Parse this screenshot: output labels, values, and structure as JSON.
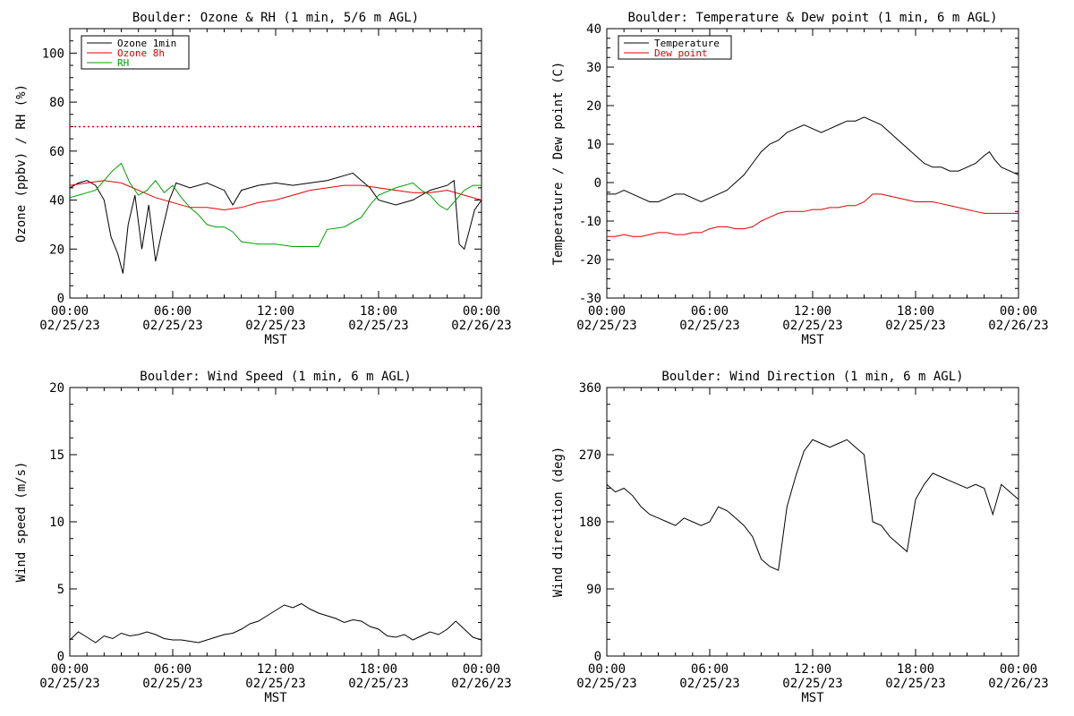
{
  "x_axis": {
    "ticks": [
      {
        "hour": 0,
        "time": "00:00",
        "date": "02/25/23"
      },
      {
        "hour": 6,
        "time": "06:00",
        "date": "02/25/23"
      },
      {
        "hour": 12,
        "time": "12:00",
        "date": "02/25/23"
      },
      {
        "hour": 18,
        "time": "18:00",
        "date": "02/25/23"
      },
      {
        "hour": 24,
        "time": "00:00",
        "date": "02/26/23"
      }
    ],
    "label": "MST"
  },
  "chart_data": [
    {
      "type": "line",
      "title": "Boulder: Ozone & RH (1 min, 5/6 m AGL)",
      "xlabel": "MST",
      "ylabel": "Ozone (ppbv) / RH (%)",
      "xlim": [
        0,
        24
      ],
      "ylim": [
        0,
        110
      ],
      "yticks": [
        0,
        20,
        40,
        60,
        80,
        100
      ],
      "legend": "top-left",
      "grid": false,
      "reference_line": {
        "y": 70,
        "style": "dotted",
        "color": "#e00000"
      },
      "series": [
        {
          "name": "Ozone 1min",
          "color": "#000000",
          "x": [
            0,
            0.5,
            1,
            1.5,
            2,
            2.4,
            2.8,
            3.1,
            3.4,
            3.8,
            4.2,
            4.6,
            5.0,
            5.4,
            5.8,
            6.2,
            7,
            8,
            9,
            9.5,
            10,
            11,
            12,
            13,
            14,
            15,
            16,
            16.5,
            17,
            17.5,
            18,
            19,
            20,
            21,
            22,
            22.4,
            22.7,
            23,
            23.3,
            23.6,
            24
          ],
          "y": [
            45,
            47,
            48,
            46,
            40,
            25,
            18,
            10,
            30,
            42,
            20,
            38,
            15,
            28,
            40,
            47,
            45,
            47,
            44,
            38,
            44,
            46,
            47,
            46,
            47,
            48,
            50,
            51,
            48,
            45,
            40,
            38,
            40,
            44,
            46,
            48,
            22,
            20,
            28,
            36,
            40
          ]
        },
        {
          "name": "Ozone 8h",
          "color": "#e00000",
          "x": [
            0,
            1,
            2,
            3,
            4,
            5,
            6,
            7,
            8,
            9,
            10,
            11,
            12,
            13,
            14,
            15,
            16,
            17,
            18,
            19,
            20,
            21,
            22,
            23,
            24
          ],
          "y": [
            46,
            47,
            48,
            47,
            44,
            41,
            39,
            37,
            37,
            36,
            37,
            39,
            40,
            42,
            44,
            45,
            46,
            46,
            45,
            44,
            43,
            43,
            44,
            42,
            40
          ]
        },
        {
          "name": "RH",
          "color": "#00a000",
          "x": [
            0,
            0.5,
            1,
            1.5,
            2,
            2.5,
            3,
            3.5,
            4,
            4.5,
            5,
            5.5,
            6,
            6.5,
            7,
            7.5,
            8,
            8.5,
            9,
            9.5,
            10,
            11,
            12,
            13,
            14,
            14.5,
            15,
            16,
            17,
            17.5,
            18,
            19,
            20,
            20.5,
            21,
            21.5,
            22,
            22.5,
            23,
            23.5,
            24
          ],
          "y": [
            41,
            42,
            43,
            44,
            48,
            52,
            55,
            47,
            42,
            44,
            48,
            43,
            46,
            41,
            37,
            34,
            30,
            29,
            29,
            27,
            23,
            22,
            22,
            21,
            21,
            21,
            28,
            29,
            33,
            38,
            42,
            45,
            47,
            44,
            42,
            38,
            36,
            40,
            44,
            46,
            46
          ]
        }
      ]
    },
    {
      "type": "line",
      "title": "Boulder: Temperature & Dew point (1 min, 6 m AGL)",
      "xlabel": "MST",
      "ylabel": "Temperature / Dew point (C)",
      "xlim": [
        0,
        24
      ],
      "ylim": [
        -30,
        40
      ],
      "yticks": [
        -30,
        -20,
        -10,
        0,
        10,
        20,
        30,
        40
      ],
      "legend": "top-left",
      "grid": false,
      "series": [
        {
          "name": "Temperature",
          "color": "#000000",
          "x": [
            0,
            0.5,
            1,
            1.5,
            2,
            2.5,
            3,
            3.5,
            4,
            4.5,
            5,
            5.5,
            6,
            6.5,
            7,
            7.5,
            8,
            8.5,
            9,
            9.5,
            10,
            10.5,
            11,
            11.5,
            12,
            12.5,
            13,
            13.5,
            14,
            14.5,
            15,
            15.5,
            16,
            16.5,
            17,
            17.5,
            18,
            18.5,
            19,
            19.5,
            20,
            20.5,
            21,
            21.5,
            22,
            22.3,
            22.6,
            23,
            23.5,
            24
          ],
          "y": [
            -3,
            -3,
            -2,
            -3,
            -4,
            -5,
            -5,
            -4,
            -3,
            -3,
            -4,
            -5,
            -4,
            -3,
            -2,
            0,
            2,
            5,
            8,
            10,
            11,
            13,
            14,
            15,
            14,
            13,
            14,
            15,
            16,
            16,
            17,
            16,
            15,
            13,
            11,
            9,
            7,
            5,
            4,
            4,
            3,
            3,
            4,
            5,
            7,
            8,
            6,
            4,
            3,
            2
          ]
        },
        {
          "name": "Dew point",
          "color": "#e00000",
          "x": [
            0,
            0.5,
            1,
            1.5,
            2,
            2.5,
            3,
            3.5,
            4,
            4.5,
            5,
            5.5,
            6,
            6.5,
            7,
            7.5,
            8,
            8.5,
            9,
            9.5,
            10,
            10.5,
            11,
            11.5,
            12,
            12.5,
            13,
            13.5,
            14,
            14.5,
            15,
            15.5,
            16,
            16.5,
            17,
            17.5,
            18,
            18.5,
            19,
            19.5,
            20,
            20.5,
            21,
            21.5,
            22,
            22.5,
            23,
            23.5,
            24
          ],
          "y": [
            -14,
            -14,
            -13.5,
            -14,
            -14,
            -13.5,
            -13,
            -13,
            -13.5,
            -13.5,
            -13,
            -13,
            -12,
            -11.5,
            -11.5,
            -12,
            -12,
            -11.5,
            -10,
            -9,
            -8,
            -7.5,
            -7.5,
            -7.5,
            -7,
            -7,
            -6.5,
            -6.5,
            -6,
            -6,
            -5,
            -3,
            -3,
            -3.5,
            -4,
            -4.5,
            -5,
            -5,
            -5,
            -5.5,
            -6,
            -6.5,
            -7,
            -7.5,
            -8,
            -8,
            -8,
            -8,
            -8
          ]
        }
      ]
    },
    {
      "type": "line",
      "title": "Boulder: Wind Speed (1 min, 6 m AGL)",
      "xlabel": "MST",
      "ylabel": "Wind speed (m/s)",
      "xlim": [
        0,
        24
      ],
      "ylim": [
        0,
        20
      ],
      "yticks": [
        0,
        5,
        10,
        15,
        20
      ],
      "legend": "none",
      "grid": false,
      "series": [
        {
          "color": "#000000",
          "x": [
            0,
            0.5,
            1,
            1.5,
            2,
            2.5,
            3,
            3.5,
            4,
            4.5,
            5,
            5.5,
            6,
            6.5,
            7,
            7.5,
            8,
            8.5,
            9,
            9.5,
            10,
            10.5,
            11,
            11.5,
            12,
            12.5,
            13,
            13.5,
            14,
            14.5,
            15,
            15.5,
            16,
            16.5,
            17,
            17.5,
            18,
            18.5,
            19,
            19.5,
            20,
            20.5,
            21,
            21.5,
            22,
            22.5,
            23,
            23.5,
            24
          ],
          "y": [
            1.2,
            1.8,
            1.4,
            1.0,
            1.5,
            1.3,
            1.7,
            1.5,
            1.6,
            1.8,
            1.6,
            1.3,
            1.2,
            1.2,
            1.1,
            1.0,
            1.2,
            1.4,
            1.6,
            1.7,
            2.0,
            2.4,
            2.6,
            3.0,
            3.4,
            3.8,
            3.6,
            3.9,
            3.5,
            3.2,
            3.0,
            2.8,
            2.5,
            2.7,
            2.6,
            2.2,
            2.0,
            1.5,
            1.4,
            1.6,
            1.2,
            1.5,
            1.8,
            1.6,
            2.0,
            2.6,
            2.0,
            1.4,
            1.2
          ]
        }
      ]
    },
    {
      "type": "line",
      "title": "Boulder: Wind Direction (1 min, 6 m AGL)",
      "xlabel": "MST",
      "ylabel": "Wind direction (deg)",
      "xlim": [
        0,
        24
      ],
      "ylim": [
        0,
        360
      ],
      "yticks": [
        0,
        90,
        180,
        270,
        360
      ],
      "legend": "none",
      "grid": false,
      "series": [
        {
          "color": "#000000",
          "x": [
            0,
            0.5,
            1,
            1.5,
            2,
            2.5,
            3,
            3.5,
            4,
            4.5,
            5,
            5.5,
            6,
            6.5,
            7,
            7.5,
            8,
            8.5,
            9,
            9.5,
            10,
            10.5,
            11,
            11.5,
            12,
            12.5,
            13,
            13.5,
            14,
            14.5,
            15,
            15.5,
            16,
            16.5,
            17,
            17.5,
            18,
            18.5,
            19,
            19.5,
            20,
            20.5,
            21,
            21.5,
            22,
            22.5,
            23,
            23.5,
            24
          ],
          "y": [
            230,
            220,
            225,
            215,
            200,
            190,
            185,
            180,
            175,
            185,
            180,
            175,
            180,
            200,
            195,
            185,
            175,
            160,
            130,
            120,
            115,
            200,
            240,
            275,
            290,
            285,
            280,
            285,
            290,
            280,
            270,
            180,
            175,
            160,
            150,
            140,
            210,
            230,
            245,
            240,
            235,
            230,
            225,
            230,
            225,
            190,
            230,
            220,
            210
          ]
        }
      ]
    }
  ]
}
